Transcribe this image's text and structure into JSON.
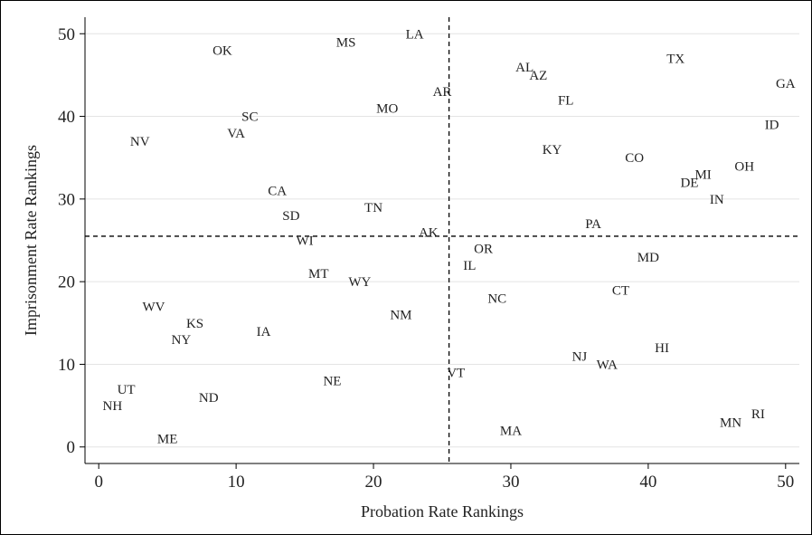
{
  "chart_data": {
    "type": "scatter",
    "xlabel": "Probation Rate Rankings",
    "ylabel": "Imprisonment Rate Rankings",
    "xlim": [
      -1,
      51
    ],
    "ylim": [
      -2,
      52
    ],
    "xticks": [
      0,
      10,
      20,
      30,
      40,
      50
    ],
    "yticks": [
      0,
      10,
      20,
      30,
      40,
      50
    ],
    "grid": "horizontal",
    "reference_lines": {
      "x": 25.5,
      "y": 25.5
    },
    "points": [
      {
        "label": "OK",
        "x": 9,
        "y": 48
      },
      {
        "label": "MS",
        "x": 18,
        "y": 49
      },
      {
        "label": "LA",
        "x": 23,
        "y": 50
      },
      {
        "label": "AR",
        "x": 25,
        "y": 43
      },
      {
        "label": "MO",
        "x": 21,
        "y": 41
      },
      {
        "label": "SC",
        "x": 11,
        "y": 40
      },
      {
        "label": "VA",
        "x": 10,
        "y": 38
      },
      {
        "label": "NV",
        "x": 3,
        "y": 37
      },
      {
        "label": "CA",
        "x": 13,
        "y": 31
      },
      {
        "label": "TN",
        "x": 20,
        "y": 29
      },
      {
        "label": "SD",
        "x": 14,
        "y": 28
      },
      {
        "label": "AK",
        "x": 24,
        "y": 26
      },
      {
        "label": "WI",
        "x": 15,
        "y": 25
      },
      {
        "label": "MT",
        "x": 16,
        "y": 21
      },
      {
        "label": "WY",
        "x": 19,
        "y": 20
      },
      {
        "label": "NM",
        "x": 22,
        "y": 16
      },
      {
        "label": "WV",
        "x": 4,
        "y": 17
      },
      {
        "label": "KS",
        "x": 7,
        "y": 15
      },
      {
        "label": "NY",
        "x": 6,
        "y": 13
      },
      {
        "label": "IA",
        "x": 12,
        "y": 14
      },
      {
        "label": "NE",
        "x": 17,
        "y": 8
      },
      {
        "label": "UT",
        "x": 2,
        "y": 7
      },
      {
        "label": "ND",
        "x": 8,
        "y": 6
      },
      {
        "label": "NH",
        "x": 1,
        "y": 5
      },
      {
        "label": "ME",
        "x": 5,
        "y": 1
      },
      {
        "label": "VT",
        "x": 26,
        "y": 9
      },
      {
        "label": "MA",
        "x": 30,
        "y": 2
      },
      {
        "label": "AL",
        "x": 31,
        "y": 46
      },
      {
        "label": "AZ",
        "x": 32,
        "y": 45
      },
      {
        "label": "TX",
        "x": 42,
        "y": 47
      },
      {
        "label": "GA",
        "x": 50,
        "y": 44
      },
      {
        "label": "FL",
        "x": 34,
        "y": 42
      },
      {
        "label": "ID",
        "x": 49,
        "y": 39
      },
      {
        "label": "KY",
        "x": 33,
        "y": 36
      },
      {
        "label": "CO",
        "x": 39,
        "y": 35
      },
      {
        "label": "OH",
        "x": 47,
        "y": 34
      },
      {
        "label": "MI",
        "x": 44,
        "y": 33
      },
      {
        "label": "DE",
        "x": 43,
        "y": 32
      },
      {
        "label": "IN",
        "x": 45,
        "y": 30
      },
      {
        "label": "PA",
        "x": 36,
        "y": 27
      },
      {
        "label": "OR",
        "x": 28,
        "y": 24
      },
      {
        "label": "IL",
        "x": 27,
        "y": 22
      },
      {
        "label": "MD",
        "x": 40,
        "y": 23
      },
      {
        "label": "CT",
        "x": 38,
        "y": 19
      },
      {
        "label": "NC",
        "x": 29,
        "y": 18
      },
      {
        "label": "HI",
        "x": 41,
        "y": 12
      },
      {
        "label": "NJ",
        "x": 35,
        "y": 11
      },
      {
        "label": "WA",
        "x": 37,
        "y": 10
      },
      {
        "label": "MN",
        "x": 46,
        "y": 3
      },
      {
        "label": "RI",
        "x": 48,
        "y": 4
      }
    ]
  }
}
